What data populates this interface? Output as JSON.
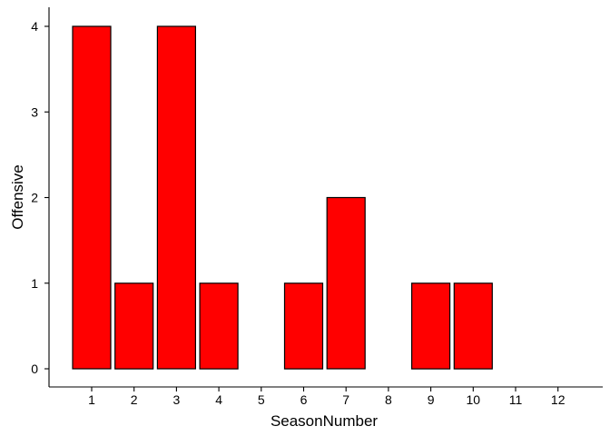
{
  "chart_data": {
    "type": "bar",
    "categories": [
      "1",
      "2",
      "3",
      "4",
      "5",
      "6",
      "7",
      "8",
      "9",
      "10",
      "11",
      "12"
    ],
    "values": [
      4,
      1,
      4,
      1,
      0,
      1,
      2,
      0,
      1,
      1,
      0,
      0
    ],
    "xlabel": "SeasonNumber",
    "ylabel": "Offensive",
    "yticks": [
      "0",
      "1",
      "2",
      "3",
      "4"
    ],
    "ylim": [
      0,
      4
    ],
    "grid": false,
    "legend": "none",
    "bar_color": "#ff0000",
    "bar_outline": "#000000"
  }
}
